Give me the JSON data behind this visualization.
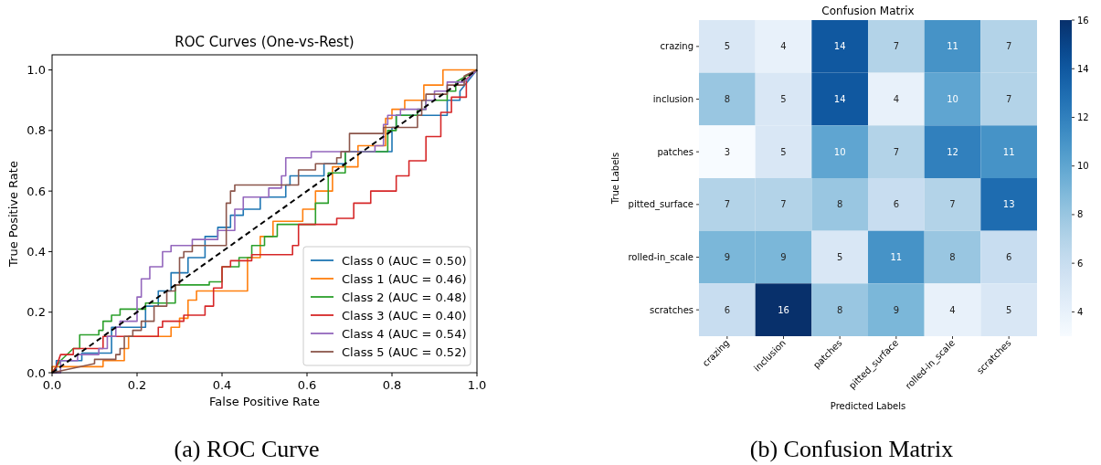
{
  "chart_data": [
    {
      "type": "line",
      "title": "ROC Curves (One-vs-Rest)",
      "xlabel": "False Positive Rate",
      "ylabel": "True Positive Rate",
      "xlim": [
        0,
        1
      ],
      "ylim": [
        0,
        1.05
      ],
      "xticks": [
        {
          "value": 0,
          "label": "0.0"
        },
        {
          "value": 0.2,
          "label": "0.2"
        },
        {
          "value": 0.4,
          "label": "0.4"
        },
        {
          "value": 0.6,
          "label": "0.6"
        },
        {
          "value": 0.8,
          "label": "0.8"
        },
        {
          "value": 1,
          "label": "1.0"
        }
      ],
      "yticks": [
        {
          "value": 0,
          "label": "0.0"
        },
        {
          "value": 0.2,
          "label": "0.2"
        },
        {
          "value": 0.4,
          "label": "0.4"
        },
        {
          "value": 0.6,
          "label": "0.6"
        },
        {
          "value": 0.8,
          "label": "0.8"
        },
        {
          "value": 1,
          "label": "1.0"
        }
      ],
      "legend": "bottom right",
      "annotations": [
        "(a) ROC Curve"
      ],
      "series": [
        {
          "name": "Class 0 (AUC = 0.50)",
          "color": "#1f77b4",
          "x": [
            0,
            0.01,
            0.01,
            0.07,
            0.07,
            0.14,
            0.14,
            0.22,
            0.22,
            0.25,
            0.25,
            0.28,
            0.28,
            0.32,
            0.32,
            0.36,
            0.36,
            0.39,
            0.39,
            0.42,
            0.42,
            0.45,
            0.45,
            0.49,
            0.49,
            0.55,
            0.55,
            0.56,
            0.56,
            0.64,
            0.64,
            0.69,
            0.69,
            0.8,
            0.8,
            0.81,
            0.81,
            0.93,
            0.93,
            0.96,
            0.96,
            1
          ],
          "values": [
            0,
            0,
            0.04,
            0.04,
            0.065,
            0.065,
            0.15,
            0.15,
            0.22,
            0.22,
            0.27,
            0.27,
            0.33,
            0.33,
            0.38,
            0.38,
            0.45,
            0.45,
            0.48,
            0.48,
            0.52,
            0.52,
            0.54,
            0.54,
            0.58,
            0.58,
            0.62,
            0.62,
            0.65,
            0.65,
            0.69,
            0.69,
            0.73,
            0.73,
            0.81,
            0.81,
            0.85,
            0.85,
            0.9,
            0.9,
            0.93,
            1
          ]
        },
        {
          "name": "Class 1 (AUC = 0.46)",
          "color": "#ff7f0e",
          "x": [
            0,
            0,
            0.12,
            0.12,
            0.17,
            0.17,
            0.18,
            0.18,
            0.28,
            0.28,
            0.3,
            0.3,
            0.32,
            0.32,
            0.34,
            0.34,
            0.46,
            0.46,
            0.49,
            0.49,
            0.52,
            0.52,
            0.59,
            0.59,
            0.62,
            0.62,
            0.66,
            0.66,
            0.72,
            0.72,
            0.785,
            0.785,
            0.8,
            0.8,
            0.83,
            0.83,
            0.875,
            0.875,
            0.92,
            0.92,
            1
          ],
          "values": [
            0,
            0.02,
            0.02,
            0.04,
            0.04,
            0.08,
            0.08,
            0.12,
            0.12,
            0.15,
            0.15,
            0.18,
            0.18,
            0.24,
            0.24,
            0.27,
            0.27,
            0.38,
            0.38,
            0.45,
            0.45,
            0.5,
            0.5,
            0.54,
            0.54,
            0.6,
            0.6,
            0.68,
            0.68,
            0.75,
            0.75,
            0.84,
            0.84,
            0.87,
            0.87,
            0.9,
            0.9,
            0.95,
            0.95,
            1,
            1
          ]
        },
        {
          "name": "Class 2 (AUC = 0.48)",
          "color": "#2ca02c",
          "x": [
            0,
            0.02,
            0.05,
            0.065,
            0.065,
            0.11,
            0.11,
            0.12,
            0.12,
            0.14,
            0.14,
            0.16,
            0.16,
            0.22,
            0.22,
            0.29,
            0.29,
            0.37,
            0.37,
            0.4,
            0.4,
            0.44,
            0.44,
            0.47,
            0.47,
            0.5,
            0.5,
            0.53,
            0.53,
            0.62,
            0.62,
            0.65,
            0.65,
            0.69,
            0.69,
            0.79,
            0.79,
            0.81,
            0.81,
            0.86,
            0.86,
            0.88,
            0.88,
            0.93,
            0.93,
            0.95,
            0.95,
            1
          ],
          "values": [
            0,
            0.04,
            0.08,
            0.08,
            0.125,
            0.125,
            0.14,
            0.14,
            0.17,
            0.17,
            0.19,
            0.19,
            0.21,
            0.21,
            0.23,
            0.23,
            0.29,
            0.29,
            0.3,
            0.3,
            0.35,
            0.35,
            0.38,
            0.38,
            0.42,
            0.42,
            0.45,
            0.45,
            0.49,
            0.49,
            0.56,
            0.56,
            0.66,
            0.66,
            0.73,
            0.73,
            0.8,
            0.8,
            0.85,
            0.85,
            0.87,
            0.87,
            0.9,
            0.9,
            0.93,
            0.93,
            0.96,
            1
          ]
        },
        {
          "name": "Class 3 (AUC = 0.40)",
          "color": "#d62728",
          "x": [
            0,
            0.01,
            0.02,
            0.05,
            0.05,
            0.12,
            0.12,
            0.25,
            0.25,
            0.26,
            0.26,
            0.31,
            0.31,
            0.36,
            0.36,
            0.38,
            0.38,
            0.4,
            0.4,
            0.42,
            0.42,
            0.47,
            0.47,
            0.566,
            0.566,
            0.58,
            0.58,
            0.67,
            0.67,
            0.71,
            0.71,
            0.75,
            0.75,
            0.81,
            0.81,
            0.84,
            0.84,
            0.88,
            0.88,
            0.915,
            0.915,
            0.94,
            0.94,
            0.975,
            0.975,
            1
          ],
          "values": [
            0,
            0.02,
            0.06,
            0.06,
            0.08,
            0.08,
            0.12,
            0.12,
            0.15,
            0.15,
            0.17,
            0.17,
            0.19,
            0.19,
            0.22,
            0.22,
            0.28,
            0.28,
            0.35,
            0.35,
            0.37,
            0.37,
            0.39,
            0.39,
            0.42,
            0.42,
            0.49,
            0.49,
            0.51,
            0.51,
            0.56,
            0.56,
            0.6,
            0.6,
            0.65,
            0.65,
            0.7,
            0.7,
            0.78,
            0.78,
            0.86,
            0.86,
            0.91,
            0.91,
            0.97,
            1
          ]
        },
        {
          "name": "Class 4 (AUC = 0.54)",
          "color": "#9467bd",
          "x": [
            0,
            0.02,
            0.02,
            0.06,
            0.06,
            0.11,
            0.11,
            0.13,
            0.13,
            0.15,
            0.15,
            0.16,
            0.16,
            0.2,
            0.2,
            0.21,
            0.21,
            0.23,
            0.23,
            0.26,
            0.26,
            0.28,
            0.28,
            0.33,
            0.33,
            0.39,
            0.39,
            0.43,
            0.43,
            0.45,
            0.45,
            0.51,
            0.51,
            0.54,
            0.54,
            0.55,
            0.55,
            0.61,
            0.61,
            0.76,
            0.76,
            0.78,
            0.78,
            0.79,
            0.79,
            0.82,
            0.82,
            0.88,
            0.88,
            0.9,
            0.9,
            0.93,
            0.93,
            0.97,
            1
          ],
          "values": [
            0,
            0,
            0.04,
            0.04,
            0.06,
            0.06,
            0.08,
            0.08,
            0.12,
            0.12,
            0.15,
            0.15,
            0.17,
            0.17,
            0.25,
            0.25,
            0.31,
            0.31,
            0.35,
            0.35,
            0.4,
            0.4,
            0.42,
            0.42,
            0.44,
            0.44,
            0.47,
            0.47,
            0.54,
            0.54,
            0.58,
            0.58,
            0.61,
            0.61,
            0.65,
            0.65,
            0.71,
            0.71,
            0.73,
            0.73,
            0.75,
            0.75,
            0.82,
            0.82,
            0.85,
            0.85,
            0.87,
            0.87,
            0.9,
            0.9,
            0.93,
            0.93,
            0.96,
            0.96,
            1
          ]
        },
        {
          "name": "Class 5 (AUC = 0.52)",
          "color": "#8c564b",
          "x": [
            0,
            0.1,
            0.1,
            0.15,
            0.15,
            0.16,
            0.16,
            0.17,
            0.17,
            0.19,
            0.19,
            0.21,
            0.21,
            0.24,
            0.24,
            0.27,
            0.27,
            0.29,
            0.29,
            0.3,
            0.3,
            0.31,
            0.31,
            0.33,
            0.33,
            0.41,
            0.41,
            0.42,
            0.42,
            0.43,
            0.43,
            0.58,
            0.58,
            0.62,
            0.62,
            0.67,
            0.67,
            0.68,
            0.68,
            0.7,
            0.7,
            0.78,
            0.78,
            0.86,
            0.86,
            0.87,
            0.87,
            0.88,
            0.88,
            0.93,
            0.93,
            0.97,
            0.97,
            1
          ],
          "values": [
            0,
            0.03,
            0.044,
            0.044,
            0.06,
            0.06,
            0.08,
            0.08,
            0.12,
            0.12,
            0.14,
            0.14,
            0.17,
            0.17,
            0.22,
            0.22,
            0.27,
            0.27,
            0.29,
            0.29,
            0.38,
            0.38,
            0.4,
            0.4,
            0.42,
            0.42,
            0.56,
            0.56,
            0.6,
            0.6,
            0.62,
            0.62,
            0.67,
            0.67,
            0.69,
            0.69,
            0.71,
            0.71,
            0.73,
            0.73,
            0.79,
            0.79,
            0.81,
            0.81,
            0.85,
            0.85,
            0.9,
            0.9,
            0.92,
            0.92,
            0.95,
            0.95,
            0.98,
            1
          ]
        },
        {
          "color": "#000000",
          "line_style": "dashed",
          "x": [
            0,
            1
          ],
          "values": [
            0,
            1
          ]
        }
      ]
    },
    {
      "type": "heatmap",
      "title": "Confusion Matrix",
      "xlabel": "Predicted Labels",
      "ylabel": "True Labels",
      "annotations": [
        "(b) Confusion Matrix"
      ],
      "categories": [
        "crazing",
        "inclusion",
        "patches",
        "pitted_surface",
        "rolled-in_scale",
        "scratches"
      ],
      "y_categories": [
        "crazing",
        "inclusion",
        "patches",
        "pitted_surface",
        "rolled-in_scale",
        "scratches"
      ],
      "cells": [
        [
          5,
          4,
          14,
          7,
          11,
          7
        ],
        [
          8,
          5,
          14,
          4,
          10,
          7
        ],
        [
          3,
          5,
          10,
          7,
          12,
          11
        ],
        [
          7,
          7,
          8,
          6,
          7,
          13
        ],
        [
          9,
          9,
          5,
          11,
          8,
          6
        ],
        [
          6,
          16,
          8,
          9,
          4,
          5
        ]
      ],
      "clim": [
        3,
        16
      ],
      "cticks": [
        4,
        6,
        8,
        10,
        12,
        14,
        16
      ],
      "data_labels": true
    }
  ]
}
